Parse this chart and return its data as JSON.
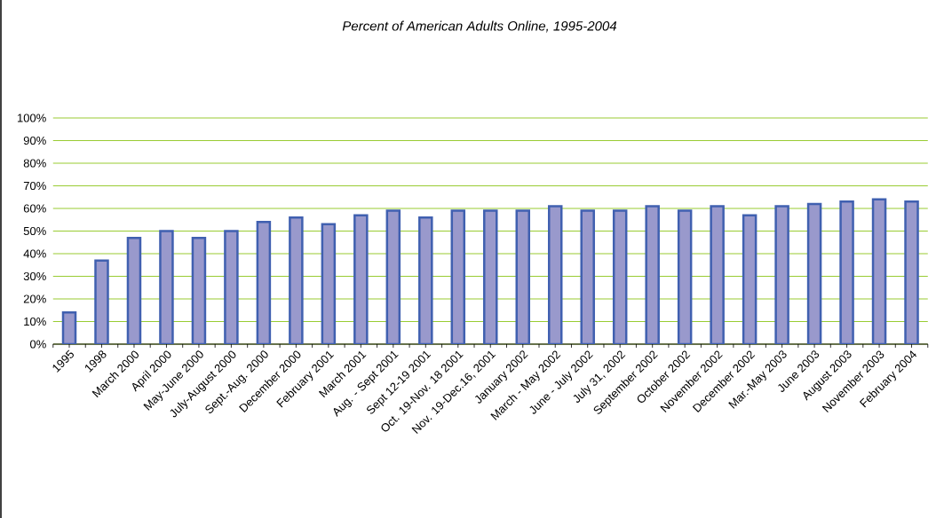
{
  "chart_data": {
    "type": "bar",
    "title": "*Percent of American Adults Online, 1995-2004*",
    "categories": [
      "1995",
      "1998",
      "March 2000",
      "April 2000",
      "May-June 2000",
      "July-August 2000",
      "Sept.-Aug. 2000",
      "December 2000",
      "February 2001",
      "March 2001",
      "Aug. - Sept 2001",
      "Sept 12-19 2001",
      "Oct. 19-Nov. 18 2001",
      "Nov. 19-Dec.16, 2001",
      "January 2002",
      "March - May 2002",
      "June - July 2002",
      "July 31, 2002",
      "September 2002",
      "October 2002",
      "November 2002",
      "December 2002",
      "Mar.-May 2003",
      "June 2003",
      "August 2003",
      "November 2003",
      "February 2004"
    ],
    "values": [
      14,
      37,
      47,
      50,
      47,
      50,
      54,
      56,
      53,
      57,
      59,
      56,
      59,
      59,
      59,
      61,
      59,
      59,
      61,
      59,
      61,
      57,
      61,
      62,
      63,
      64,
      63
    ],
    "color": "#9999cc",
    "ylim": [
      0,
      100
    ],
    "yticks": [
      {
        "value": 0,
        "label": "0%"
      },
      {
        "value": 10,
        "label": "10%"
      },
      {
        "value": 20,
        "label": "20%"
      },
      {
        "value": 30,
        "label": "30%"
      },
      {
        "value": 40,
        "label": "40%"
      },
      {
        "value": 50,
        "label": "50%"
      },
      {
        "value": 60,
        "label": "60%"
      },
      {
        "value": 70,
        "label": "70%"
      },
      {
        "value": 80,
        "label": "80%"
      },
      {
        "value": 90,
        "label": "90%"
      },
      {
        "value": 100,
        "label": "100%"
      }
    ],
    "grid": "y"
  }
}
